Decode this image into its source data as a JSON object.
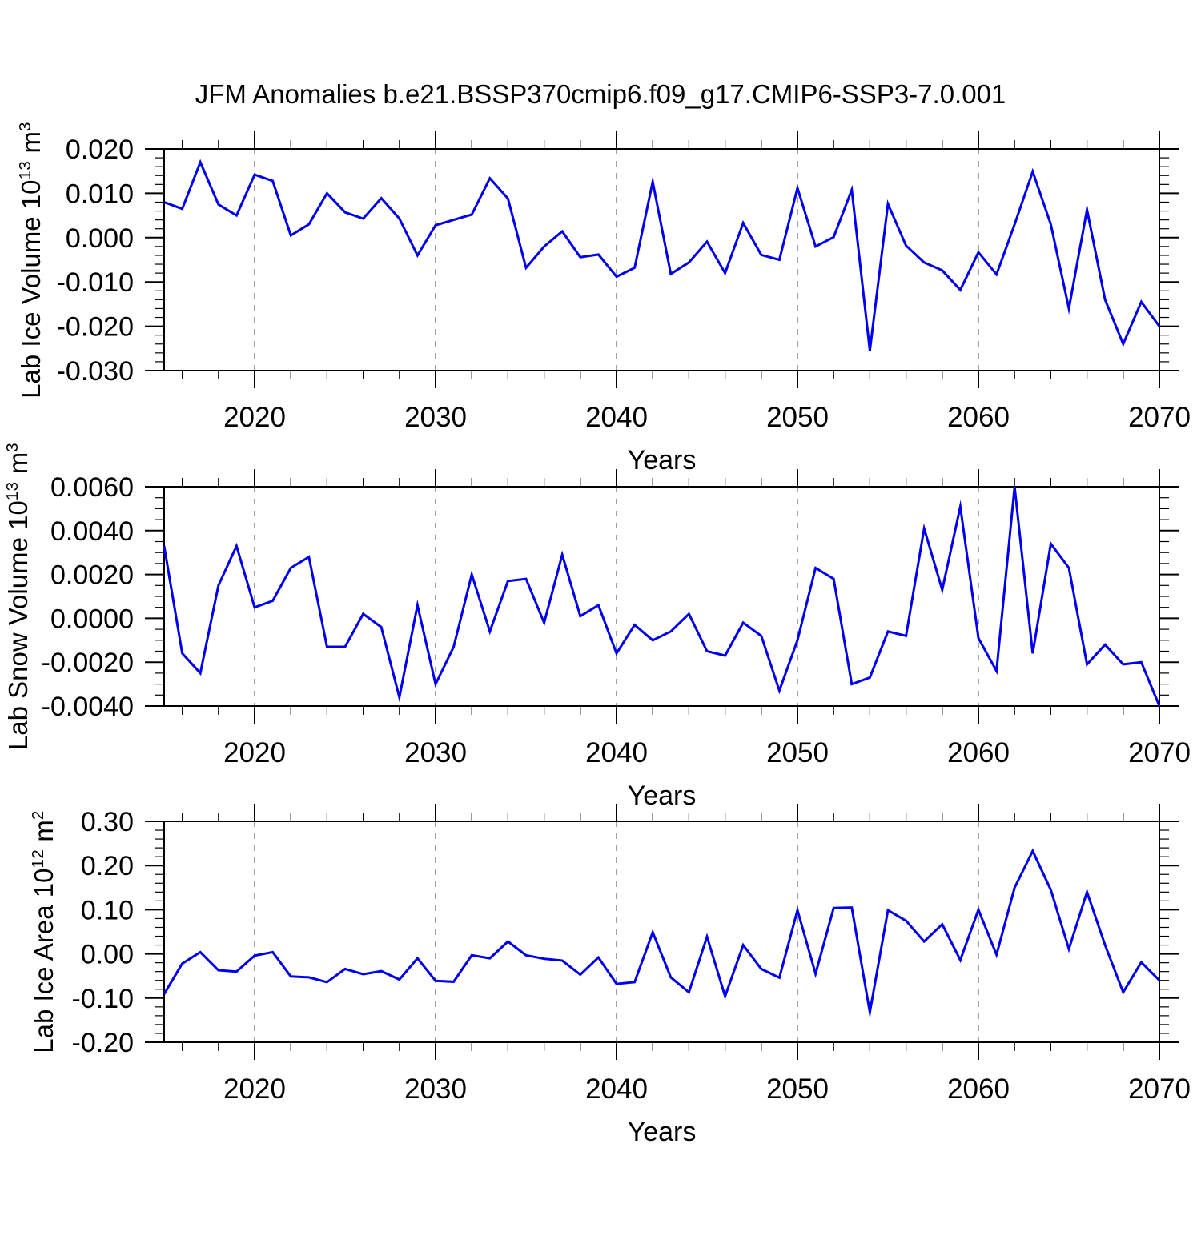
{
  "title": "JFM Anomalies b.e21.BSSP370cmip6.f09_g17.CMIP6-SSP3-7.0.001",
  "colors": {
    "line": "#0000ee",
    "axis": "#000000",
    "grid": "#8a8a8a",
    "background": "#ffffff"
  },
  "x_axis": {
    "label": "Years",
    "range": [
      2015,
      2070
    ],
    "major_ticks": [
      2020,
      2030,
      2040,
      2050,
      2060,
      2070
    ],
    "major_tick_labels": [
      "2020",
      "2030",
      "2040",
      "2050",
      "2060",
      "2070"
    ],
    "minor_step": 2,
    "grid_decades": [
      2020,
      2030,
      2040,
      2050,
      2060
    ]
  },
  "years": [
    2015,
    2016,
    2017,
    2018,
    2019,
    2020,
    2021,
    2022,
    2023,
    2024,
    2025,
    2026,
    2027,
    2028,
    2029,
    2030,
    2031,
    2032,
    2033,
    2034,
    2035,
    2036,
    2037,
    2038,
    2039,
    2040,
    2041,
    2042,
    2043,
    2044,
    2045,
    2046,
    2047,
    2048,
    2049,
    2050,
    2051,
    2052,
    2053,
    2054,
    2055,
    2056,
    2057,
    2058,
    2059,
    2060,
    2061,
    2062,
    2063,
    2064,
    2065,
    2066,
    2067,
    2068,
    2069,
    2070
  ],
  "chart_data": [
    {
      "type": "line",
      "name": "lab-ice-volume",
      "ylabel_text": "Lab Ice Volume 10^13 m^3",
      "ylabel_parts": [
        {
          "text": "Lab Ice Volume 10",
          "sup": false
        },
        {
          "text": "13",
          "sup": true
        },
        {
          "text": " m",
          "sup": false
        },
        {
          "text": "3",
          "sup": true
        }
      ],
      "xlabel": "Years",
      "ylim": [
        -0.03,
        0.02
      ],
      "ytick_values": [
        0.02,
        0.01,
        0.0,
        -0.01,
        -0.02,
        -0.03
      ],
      "ytick_labels": [
        "0.020",
        "0.010",
        "0.000",
        "-0.010",
        "-0.020",
        "-0.030"
      ],
      "y_minor_step": 0.002,
      "grid": "vertical-dashed-decades",
      "legend": "none",
      "values": [
        0.008,
        0.0065,
        0.017,
        0.0075,
        0.005,
        0.0142,
        0.0128,
        0.0005,
        0.003,
        0.01,
        0.0057,
        0.0043,
        0.0089,
        0.0043,
        -0.004,
        0.0028,
        0.004,
        0.0052,
        0.0134,
        0.0088,
        -0.0068,
        -0.002,
        0.0014,
        -0.0044,
        -0.0038,
        -0.0088,
        -0.0068,
        0.0126,
        -0.0082,
        -0.0056,
        -0.0009,
        -0.008,
        0.0033,
        -0.0039,
        -0.005,
        0.0112,
        -0.002,
        0.0001,
        0.0108,
        -0.0255,
        0.0076,
        -0.0018,
        -0.0056,
        -0.0074,
        -0.0118,
        -0.0033,
        -0.0083,
        0.003,
        0.0149,
        0.003,
        -0.016,
        0.0063,
        -0.014,
        -0.024,
        -0.0145,
        -0.02
      ]
    },
    {
      "type": "line",
      "name": "lab-snow-volume",
      "ylabel_text": "Lab Snow Volume 10^13 m^3",
      "ylabel_parts": [
        {
          "text": "Lab Snow Volume 10",
          "sup": false
        },
        {
          "text": "13",
          "sup": true
        },
        {
          "text": " m",
          "sup": false
        },
        {
          "text": "3",
          "sup": true
        }
      ],
      "xlabel": "Years",
      "ylim": [
        -0.004,
        0.006
      ],
      "ytick_values": [
        0.006,
        0.004,
        0.002,
        0.0,
        -0.002,
        -0.004
      ],
      "ytick_labels": [
        "0.0060",
        "0.0040",
        "0.0020",
        "0.0000",
        "-0.0020",
        "-0.0040"
      ],
      "y_minor_step": 0.0005,
      "grid": "vertical-dashed-decades",
      "legend": "none",
      "values": [
        0.0033,
        -0.0016,
        -0.0025,
        0.0015,
        0.0033,
        0.0005,
        0.0008,
        0.0023,
        0.0028,
        -0.0013,
        -0.0013,
        0.0002,
        -0.0004,
        -0.0036,
        0.0006,
        -0.003,
        -0.0013,
        0.002,
        -0.0006,
        0.0017,
        0.0018,
        -0.0002,
        0.0029,
        0.0001,
        0.0006,
        -0.0016,
        -0.0003,
        -0.001,
        -0.0006,
        0.0002,
        -0.0015,
        -0.0017,
        -0.0002,
        -0.0008,
        -0.0033,
        -0.001,
        0.0023,
        0.0018,
        -0.003,
        -0.0027,
        -0.0006,
        -0.0008,
        0.0041,
        0.0013,
        0.0051,
        -0.0009,
        -0.0024,
        0.006,
        -0.0016,
        0.0034,
        0.0023,
        -0.0021,
        -0.0012,
        -0.0021,
        -0.002,
        -0.004
      ]
    },
    {
      "type": "line",
      "name": "lab-ice-area",
      "ylabel_text": "Lab Ice Area 10^12 m^2",
      "ylabel_parts": [
        {
          "text": "Lab Ice Area 10",
          "sup": false
        },
        {
          "text": "12",
          "sup": true
        },
        {
          "text": " m",
          "sup": false
        },
        {
          "text": "2",
          "sup": true
        }
      ],
      "xlabel": "Years",
      "ylim": [
        -0.2,
        0.3
      ],
      "ytick_values": [
        0.3,
        0.2,
        0.1,
        0.0,
        -0.1,
        -0.2
      ],
      "ytick_labels": [
        "0.30",
        "0.20",
        "0.10",
        "0.00",
        "-0.10",
        "-0.20"
      ],
      "y_minor_step": 0.02,
      "grid": "vertical-dashed-decades",
      "legend": "none",
      "values": [
        -0.091,
        -0.022,
        0.004,
        -0.037,
        -0.04,
        -0.004,
        0.004,
        -0.051,
        -0.053,
        -0.064,
        -0.034,
        -0.046,
        -0.039,
        -0.058,
        -0.01,
        -0.061,
        -0.063,
        -0.003,
        -0.01,
        0.028,
        -0.003,
        -0.011,
        -0.015,
        -0.047,
        -0.008,
        -0.068,
        -0.064,
        0.049,
        -0.053,
        -0.087,
        0.039,
        -0.096,
        0.02,
        -0.034,
        -0.054,
        0.099,
        -0.045,
        0.104,
        0.105,
        -0.132,
        0.099,
        0.075,
        0.028,
        0.067,
        -0.014,
        0.1,
        -0.002,
        0.15,
        0.233,
        0.145,
        0.011,
        0.14,
        0.02,
        -0.087,
        -0.019,
        -0.06
      ]
    }
  ]
}
